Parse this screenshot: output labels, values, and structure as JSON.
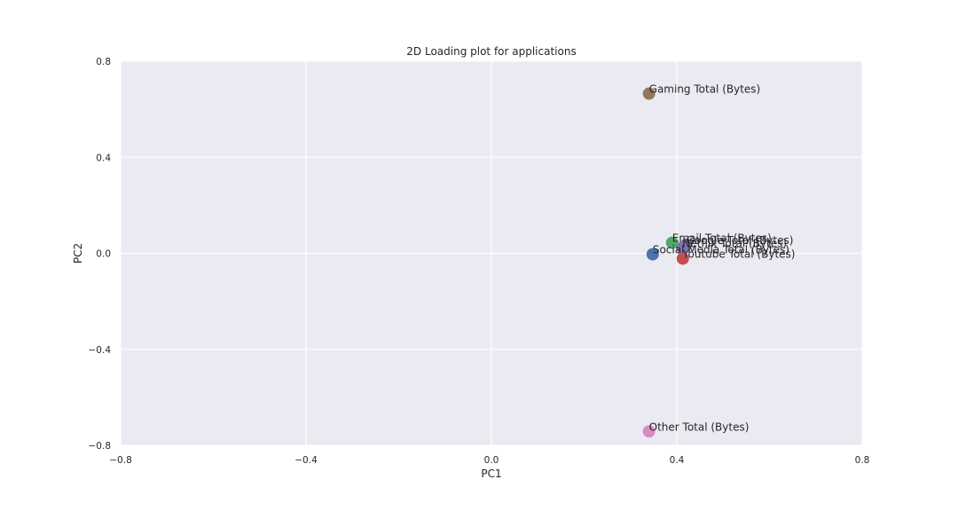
{
  "chart_data": {
    "type": "scatter",
    "title": "2D Loading plot for applications",
    "xlabel": "PC1",
    "ylabel": "PC2",
    "xlim": [
      -0.8,
      0.8
    ],
    "ylim": [
      -0.8,
      0.8
    ],
    "xticks": [
      -0.8,
      -0.4,
      0.0,
      0.4,
      0.8
    ],
    "yticks": [
      -0.8,
      -0.4,
      0.0,
      0.4,
      0.8
    ],
    "xtick_labels": [
      "−0.8",
      "−0.4",
      "0.0",
      "0.4",
      "0.8"
    ],
    "ytick_labels": [
      "−0.8",
      "−0.4",
      "0.0",
      "0.4",
      "0.8"
    ],
    "grid": true,
    "plot_background": "#EAEAF2",
    "grid_color": "#FFFFFF",
    "points": [
      {
        "label": "Social Media Total (Bytes)",
        "x": 0.348,
        "y": -0.004,
        "color": "#4C72B0"
      },
      {
        "label": "Google Total (Bytes)",
        "x": 0.42,
        "y": 0.035,
        "color": "#8172B3"
      },
      {
        "label": "Email Total (Bytes)",
        "x": 0.39,
        "y": 0.044,
        "color": "#55A868"
      },
      {
        "label": "Youtube Total (Bytes)",
        "x": 0.413,
        "y": -0.022,
        "color": "#C44E52"
      },
      {
        "label": "Netflix Total (Bytes)",
        "x": 0.412,
        "y": 0.023,
        "color": "#8172B3"
      },
      {
        "label": "Gaming Total (Bytes)",
        "x": 0.34,
        "y": 0.665,
        "color": "#937860"
      },
      {
        "label": "Other Total (Bytes)",
        "x": 0.34,
        "y": -0.742,
        "color": "#DA8BC3"
      }
    ]
  }
}
